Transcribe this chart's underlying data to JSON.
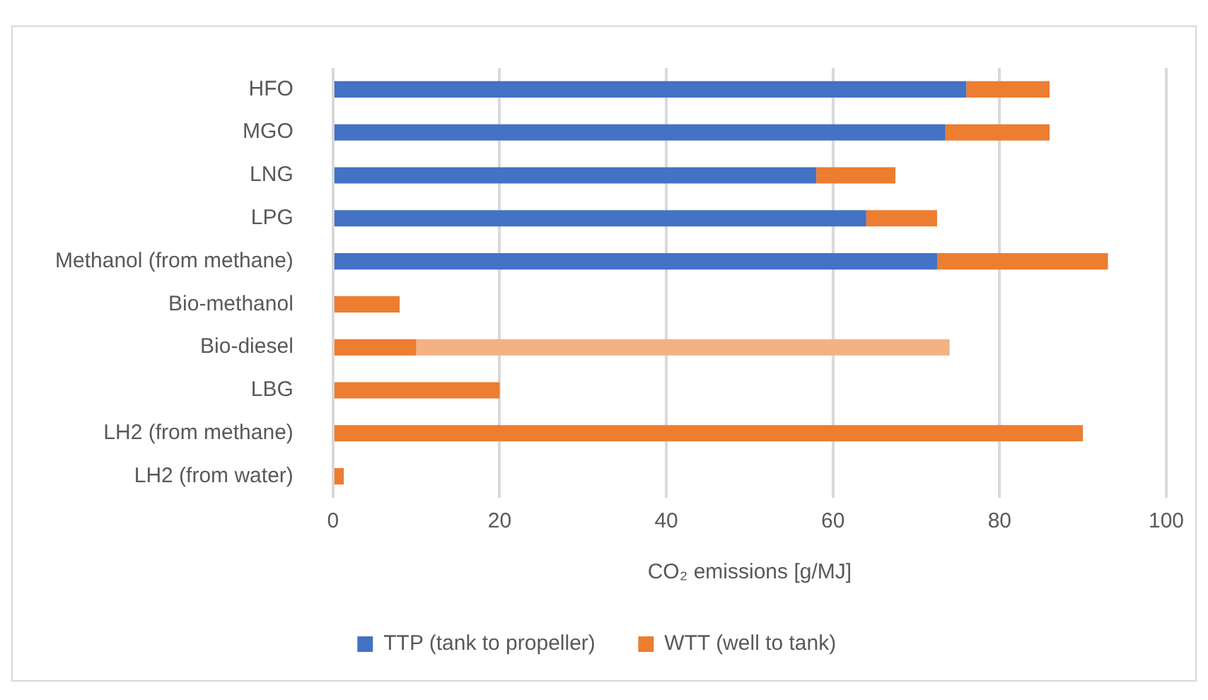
{
  "chart_data": {
    "type": "bar",
    "orientation": "horizontal",
    "stacked": true,
    "xlabel": "CO₂ emissions [g/MJ]",
    "categories": [
      "HFO",
      "MGO",
      "LNG",
      "LPG",
      "Methanol (from methane)",
      "Bio-methanol",
      "Bio-diesel",
      "LBG",
      "LH2 (from methane)",
      "LH2 (from water)"
    ],
    "series": [
      {
        "name": "TTP (tank to propeller)",
        "color": "#4472c4",
        "values": [
          76,
          73.5,
          58,
          64,
          72.5,
          null,
          null,
          null,
          null,
          null
        ]
      },
      {
        "name": "WTT (well to tank)",
        "color": "#ed7d31",
        "values": [
          10,
          12.5,
          9.5,
          8.5,
          20.5,
          8,
          10,
          20,
          90,
          1.3
        ]
      },
      {
        "color": "#f4b183",
        "values": [
          null,
          null,
          null,
          null,
          null,
          null,
          64,
          null,
          null,
          null
        ]
      }
    ],
    "xlim": [
      0,
      100
    ],
    "xticks": [
      0,
      20,
      40,
      60,
      80,
      100
    ],
    "grid": "x",
    "legend": "bottom"
  }
}
